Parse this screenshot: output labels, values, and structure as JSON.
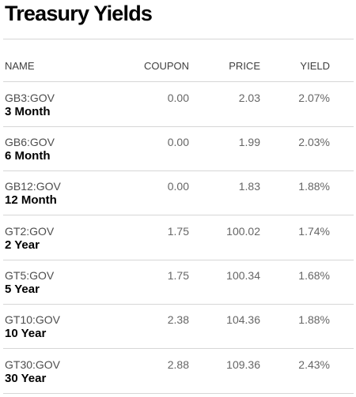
{
  "title": "Treasury Yields",
  "headers": {
    "name": "NAME",
    "coupon": "COUPON",
    "price": "PRICE",
    "yield": "YIELD"
  },
  "rows": [
    {
      "ticker": "GB3:GOV",
      "name": "3 Month",
      "coupon": "0.00",
      "price": "2.03",
      "yield": "2.07%"
    },
    {
      "ticker": "GB6:GOV",
      "name": "6 Month",
      "coupon": "0.00",
      "price": "1.99",
      "yield": "2.03%"
    },
    {
      "ticker": "GB12:GOV",
      "name": "12 Month",
      "coupon": "0.00",
      "price": "1.83",
      "yield": "1.88%"
    },
    {
      "ticker": "GT2:GOV",
      "name": "2 Year",
      "coupon": "1.75",
      "price": "100.02",
      "yield": "1.74%"
    },
    {
      "ticker": "GT5:GOV",
      "name": "5 Year",
      "coupon": "1.75",
      "price": "100.34",
      "yield": "1.68%"
    },
    {
      "ticker": "GT10:GOV",
      "name": "10 Year",
      "coupon": "2.38",
      "price": "104.36",
      "yield": "1.88%"
    },
    {
      "ticker": "GT30:GOV",
      "name": "30 Year",
      "coupon": "2.88",
      "price": "109.36",
      "yield": "2.43%"
    }
  ]
}
